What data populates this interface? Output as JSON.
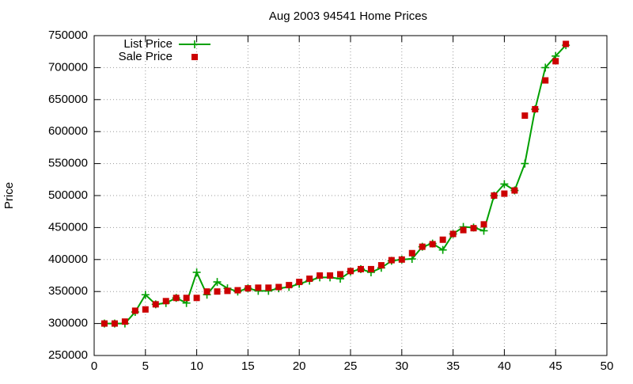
{
  "chart_data": {
    "type": "line",
    "title": "Aug 2003 94541 Home Prices",
    "y_label": "Price",
    "x": [
      1,
      2,
      3,
      4,
      5,
      6,
      7,
      8,
      9,
      10,
      11,
      12,
      13,
      14,
      15,
      16,
      17,
      18,
      19,
      20,
      21,
      22,
      23,
      24,
      25,
      26,
      27,
      28,
      29,
      30,
      31,
      32,
      33,
      34,
      35,
      36,
      37,
      38,
      39,
      40,
      41,
      42,
      43,
      44,
      45,
      46
    ],
    "series": [
      {
        "name": "List Price",
        "color": "#00a000",
        "line": true,
        "marker": "plus",
        "values": [
          300000,
          300000,
          300000,
          318000,
          345000,
          330000,
          332000,
          340000,
          332000,
          380000,
          345000,
          365000,
          355000,
          350000,
          355000,
          351000,
          351000,
          355000,
          357000,
          362000,
          367000,
          372000,
          372000,
          370000,
          381000,
          385000,
          380000,
          387000,
          398000,
          400000,
          401000,
          420000,
          425000,
          415000,
          440000,
          451000,
          450000,
          445000,
          500000,
          518000,
          508000,
          550000,
          635000,
          700000,
          718000,
          735000
        ]
      },
      {
        "name": "Sale Price",
        "color": "#cc0000",
        "line": false,
        "marker": "square",
        "values": [
          300000,
          300000,
          303000,
          320000,
          322000,
          330000,
          335000,
          340000,
          340000,
          340000,
          350000,
          350000,
          351000,
          352000,
          355000,
          356000,
          356000,
          357000,
          360000,
          365000,
          370000,
          375000,
          375000,
          377000,
          382000,
          385000,
          385000,
          391000,
          399000,
          400000,
          410000,
          420000,
          424000,
          431000,
          440000,
          446000,
          449000,
          455000,
          500000,
          503000,
          508000,
          625000,
          635000,
          680000,
          710000,
          737000
        ]
      }
    ],
    "xlim": [
      0,
      50
    ],
    "xticks": [
      0,
      5,
      10,
      15,
      20,
      25,
      30,
      35,
      40,
      45,
      50
    ],
    "ylim": [
      250000,
      750000
    ],
    "yticks": [
      250000,
      300000,
      350000,
      400000,
      450000,
      500000,
      550000,
      600000,
      650000,
      700000,
      750000
    ],
    "grid": true,
    "legend": "top-left"
  }
}
